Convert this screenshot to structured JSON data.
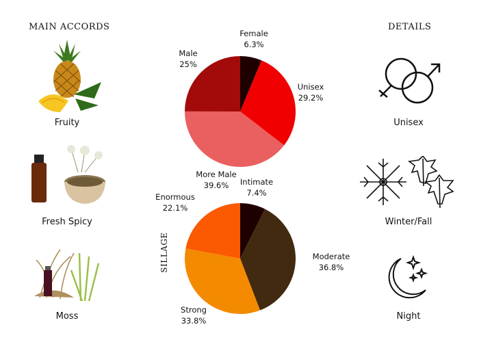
{
  "accords": {
    "heading": "MAIN ACCORDS",
    "items": [
      {
        "label": "Fruity",
        "icon": "pineapple-image"
      },
      {
        "label": "Fresh Spicy",
        "icon": "spice-oil-image"
      },
      {
        "label": "Moss",
        "icon": "moss-grass-image"
      }
    ]
  },
  "details": {
    "heading": "DETAILS",
    "items": [
      {
        "label": "Unisex",
        "icon": "gender-symbols-icon"
      },
      {
        "label": "Winter/Fall",
        "icon": "snowflake-leaves-icon"
      },
      {
        "label": "Night",
        "icon": "moon-stars-icon"
      }
    ]
  },
  "sillage_label": "SILLAGE",
  "chart_data": [
    {
      "type": "pie",
      "slices": [
        {
          "label": "Female",
          "value": 6.3,
          "display": "6.3%",
          "color": "#1f0000"
        },
        {
          "label": "Unisex",
          "value": 29.2,
          "display": "29.2%",
          "color": "#f00000"
        },
        {
          "label": "More Male",
          "value": 39.6,
          "display": "39.6%",
          "color": "#ea5f5f"
        },
        {
          "label": "Male",
          "value": 25,
          "display": "25%",
          "color": "#a30b0b"
        }
      ]
    },
    {
      "type": "pie",
      "slices": [
        {
          "label": "Intimate",
          "value": 7.4,
          "display": "7.4%",
          "color": "#1f0000"
        },
        {
          "label": "Moderate",
          "value": 36.8,
          "display": "36.8%",
          "color": "#412a10"
        },
        {
          "label": "Strong",
          "value": 33.8,
          "display": "33.8%",
          "color": "#f38a00"
        },
        {
          "label": "Enormous",
          "value": 22.1,
          "display": "22.1%",
          "color": "#fb5a00"
        }
      ]
    }
  ]
}
